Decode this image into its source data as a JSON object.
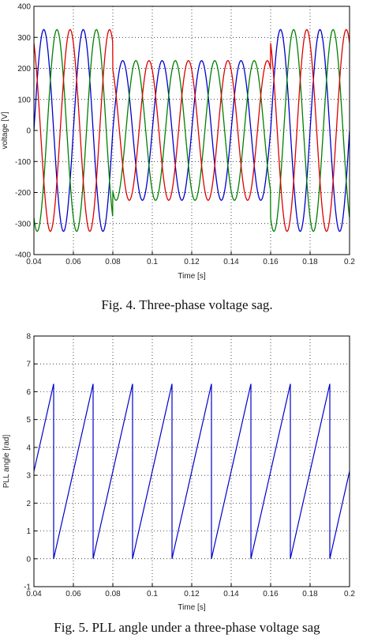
{
  "chart_data": [
    {
      "type": "line",
      "title": "",
      "caption": "Fig. 4.  Three-phase voltage sag.",
      "xlabel": "Time [s]",
      "ylabel": "voltage [V]",
      "xlim": [
        0.04,
        0.2
      ],
      "ylim": [
        -400,
        400
      ],
      "xticks": [
        "0.04",
        "0.06",
        "0.08",
        "0.1",
        "0.12",
        "0.14",
        "0.16",
        "0.18",
        "0.2"
      ],
      "yticks": [
        "-400",
        "-300",
        "-200",
        "-100",
        "0",
        "100",
        "200",
        "300",
        "400"
      ],
      "grid": true,
      "frequency_hz": 50,
      "normal_amplitude": 325,
      "sag_amplitude": 225,
      "sag_interval": [
        0.08,
        0.16
      ],
      "series": [
        {
          "phase_deg": 0,
          "color": "#0000cc"
        },
        {
          "phase_deg": -120,
          "color": "#008000"
        },
        {
          "phase_deg": 120,
          "color": "#dd0000"
        }
      ]
    },
    {
      "type": "line",
      "title": "",
      "caption": "Fig. 5.  PLL angle under a three-phase voltage sag",
      "xlabel": "Time [s]",
      "ylabel": "PLL angle [rad]",
      "xlim": [
        0.04,
        0.2
      ],
      "ylim": [
        -1,
        8
      ],
      "xticks": [
        "0.04",
        "0.06",
        "0.08",
        "0.1",
        "0.12",
        "0.14",
        "0.16",
        "0.18",
        "0.2"
      ],
      "yticks": [
        "-1",
        "0",
        "1",
        "2",
        "3",
        "4",
        "5",
        "6",
        "7",
        "8"
      ],
      "grid": true,
      "color": "#0000cc",
      "sawtooth_min": 0,
      "sawtooth_max": 6.283,
      "wrap_times": [
        0.05,
        0.07,
        0.09,
        0.11,
        0.13,
        0.15,
        0.17,
        0.19
      ],
      "start_value": 3.14
    }
  ]
}
